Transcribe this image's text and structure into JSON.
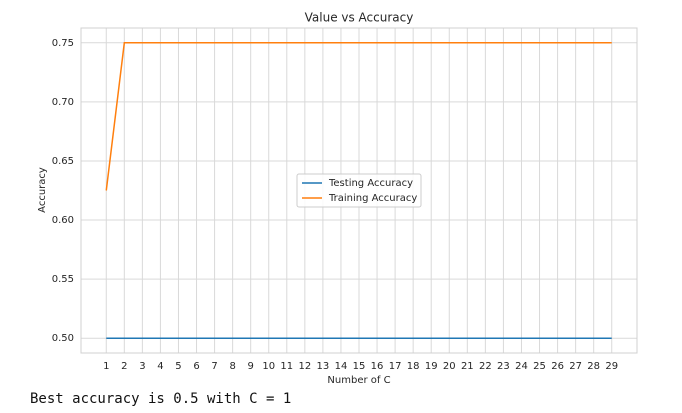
{
  "chart_data": {
    "type": "line",
    "title": "Value vs Accuracy",
    "x_label": "Number of C",
    "y_label": "Accuracy",
    "x": [
      1,
      2,
      3,
      4,
      5,
      6,
      7,
      8,
      9,
      10,
      11,
      12,
      13,
      14,
      15,
      16,
      17,
      18,
      19,
      20,
      21,
      22,
      23,
      24,
      25,
      26,
      27,
      28,
      29
    ],
    "series": [
      {
        "name": "Testing Accuracy",
        "color": "#1f77b4",
        "values": [
          0.5,
          0.5,
          0.5,
          0.5,
          0.5,
          0.5,
          0.5,
          0.5,
          0.5,
          0.5,
          0.5,
          0.5,
          0.5,
          0.5,
          0.5,
          0.5,
          0.5,
          0.5,
          0.5,
          0.5,
          0.5,
          0.5,
          0.5,
          0.5,
          0.5,
          0.5,
          0.5,
          0.5,
          0.5
        ]
      },
      {
        "name": "Training Accuracy",
        "color": "#ff7f0e",
        "values": [
          0.625,
          0.75,
          0.75,
          0.75,
          0.75,
          0.75,
          0.75,
          0.75,
          0.75,
          0.75,
          0.75,
          0.75,
          0.75,
          0.75,
          0.75,
          0.75,
          0.75,
          0.75,
          0.75,
          0.75,
          0.75,
          0.75,
          0.75,
          0.75,
          0.75,
          0.75,
          0.75,
          0.75,
          0.75
        ]
      }
    ],
    "xlim": [
      -0.4,
      30.4
    ],
    "xticks": [
      1,
      2,
      3,
      4,
      5,
      6,
      7,
      8,
      9,
      10,
      11,
      12,
      13,
      14,
      15,
      16,
      17,
      18,
      19,
      20,
      21,
      22,
      23,
      24,
      25,
      26,
      27,
      28,
      29
    ],
    "ylim": [
      0.4875,
      0.7625
    ],
    "yticks": [
      {
        "value": 0.5,
        "label": "0.50"
      },
      0.55,
      {
        "value": 0.6,
        "label": "0.60"
      },
      0.65,
      {
        "value": 0.7,
        "label": "0.70"
      },
      0.75
    ],
    "grid": true,
    "legend": "center"
  },
  "output": {
    "text": "Best accuracy is 0.5 with C = 1"
  }
}
